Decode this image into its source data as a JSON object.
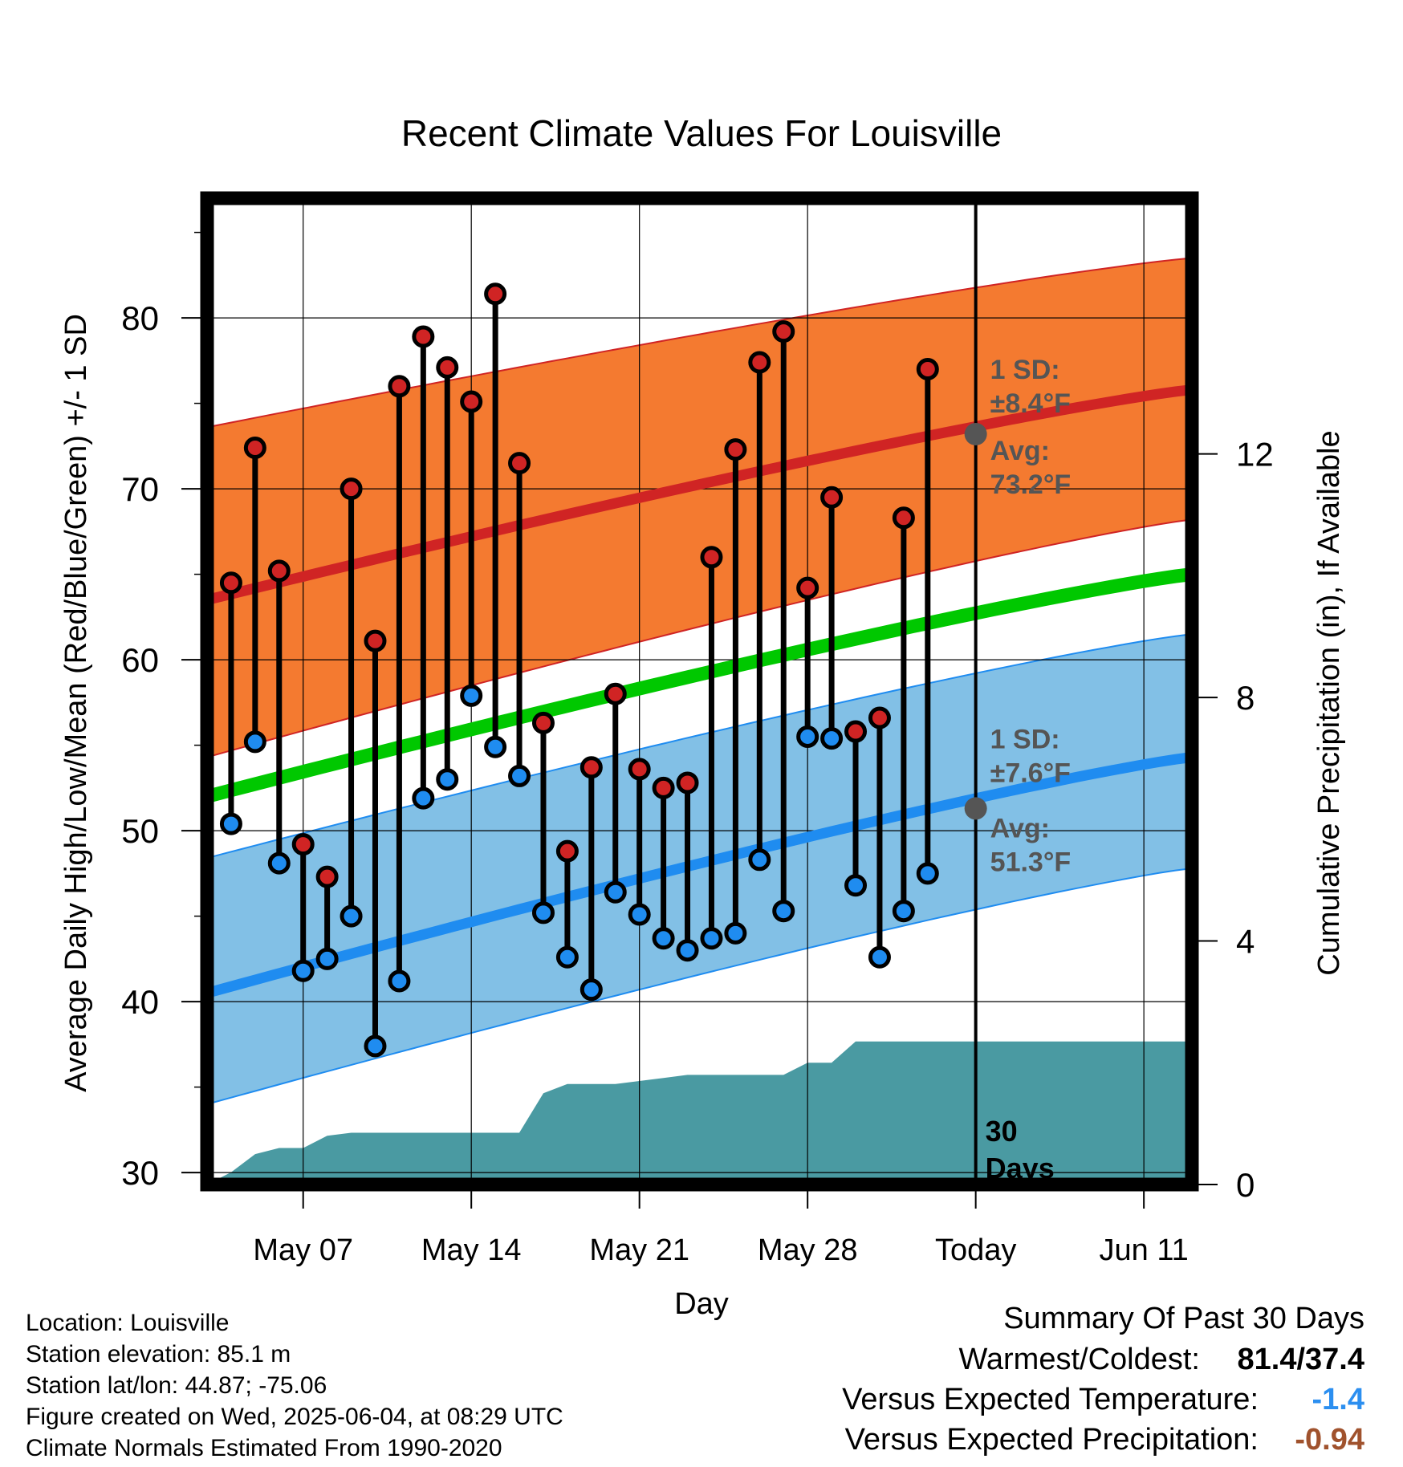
{
  "chart_data": {
    "type": "line",
    "title": "Recent Climate Values For Louisville",
    "xlabel": "Day",
    "ylabel": "Average Daily High/Low/Mean (Red/Blue/Green) +/- 1 SD",
    "y2label": "Cumulative Precipitation (in), If Available",
    "ylim": [
      29.3,
      87
    ],
    "y2lim": [
      0,
      16.2
    ],
    "x_range_days": [
      "May 03",
      "Jun 13"
    ],
    "x_ticks": [
      {
        "date": "May 07",
        "label": "May 07"
      },
      {
        "date": "May 14",
        "label": "May 14"
      },
      {
        "date": "May 21",
        "label": "May 21"
      },
      {
        "date": "May 28",
        "label": "May 28"
      },
      {
        "date": "Jun 04",
        "label": "Today"
      },
      {
        "date": "Jun 11",
        "label": "Jun 11"
      }
    ],
    "y_ticks": [
      30,
      40,
      50,
      60,
      70,
      80
    ],
    "y2_ticks": [
      0,
      4,
      8,
      12
    ],
    "grid": true,
    "today_line": "Jun 04",
    "today_label": "30 Days",
    "normal_high": {
      "avg_start": 63.5,
      "avg_end": 75.8,
      "band_upper_start": 73.6,
      "band_upper_end": 83.5,
      "band_lower_start": 54.3,
      "band_lower_end": 68.2,
      "sd_label": "1 SD:",
      "sd_value": "±8.4°F",
      "avg_label": "Avg:",
      "avg_value": "73.2°F",
      "avg_today": 73.2,
      "color_band": "#f47a30",
      "color_line": "#d02424"
    },
    "normal_low": {
      "avg_start": 40.5,
      "avg_end": 54.3,
      "band_upper_start": 48.4,
      "band_upper_end": 61.5,
      "band_lower_start": 34.0,
      "band_lower_end": 47.8,
      "sd_label": "1 SD:",
      "sd_value": "±7.6°F",
      "avg_label": "Avg:",
      "avg_value": "51.3°F",
      "avg_today": 51.3,
      "color_band": "#82c0e6",
      "color_line": "#1f8cf0"
    },
    "normal_mean": {
      "start": 52.0,
      "end": 65.0,
      "color": "#00c800"
    },
    "daily": [
      {
        "date": "May 04",
        "high": 64.5,
        "low": 50.4
      },
      {
        "date": "May 05",
        "high": 72.4,
        "low": 55.2
      },
      {
        "date": "May 06",
        "high": 65.2,
        "low": 48.1
      },
      {
        "date": "May 07",
        "high": 49.2,
        "low": 41.8
      },
      {
        "date": "May 08",
        "high": 47.3,
        "low": 42.5
      },
      {
        "date": "May 09",
        "high": 70.0,
        "low": 45.0
      },
      {
        "date": "May 10",
        "high": 61.1,
        "low": 37.4
      },
      {
        "date": "May 11",
        "high": 76.0,
        "low": 41.2
      },
      {
        "date": "May 12",
        "high": 78.9,
        "low": 51.9
      },
      {
        "date": "May 13",
        "high": 77.1,
        "low": 53.0
      },
      {
        "date": "May 14",
        "high": 75.1,
        "low": 57.9
      },
      {
        "date": "May 15",
        "high": 81.4,
        "low": 54.9
      },
      {
        "date": "May 16",
        "high": 71.5,
        "low": 53.2
      },
      {
        "date": "May 17",
        "high": 56.3,
        "low": 45.2
      },
      {
        "date": "May 18",
        "high": 48.8,
        "low": 42.6
      },
      {
        "date": "May 19",
        "high": 53.7,
        "low": 40.7
      },
      {
        "date": "May 20",
        "high": 58.0,
        "low": 46.4
      },
      {
        "date": "May 21",
        "high": 53.6,
        "low": 45.1
      },
      {
        "date": "May 22",
        "high": 52.5,
        "low": 43.7
      },
      {
        "date": "May 23",
        "high": 52.8,
        "low": 43.0
      },
      {
        "date": "May 24",
        "high": 66.0,
        "low": 43.7
      },
      {
        "date": "May 25",
        "high": 72.3,
        "low": 44.0
      },
      {
        "date": "May 26",
        "high": 77.4,
        "low": 48.3
      },
      {
        "date": "May 27",
        "high": 79.2,
        "low": 45.3
      },
      {
        "date": "May 28",
        "high": 64.2,
        "low": 55.5
      },
      {
        "date": "May 29",
        "high": 69.5,
        "low": 55.4
      },
      {
        "date": "May 30",
        "high": 55.8,
        "low": 46.8
      },
      {
        "date": "May 31",
        "high": 56.6,
        "low": 42.6
      },
      {
        "date": "Jun 01",
        "high": 68.3,
        "low": 45.3
      },
      {
        "date": "Jun 02",
        "high": 77.0,
        "low": 47.5
      }
    ],
    "precip_cumulative": [
      {
        "date": "May 03",
        "value": 0.0
      },
      {
        "date": "May 04",
        "value": 0.2
      },
      {
        "date": "May 05",
        "value": 0.5
      },
      {
        "date": "May 06",
        "value": 0.6
      },
      {
        "date": "May 07",
        "value": 0.6
      },
      {
        "date": "May 08",
        "value": 0.8
      },
      {
        "date": "May 09",
        "value": 0.85
      },
      {
        "date": "May 16",
        "value": 0.85
      },
      {
        "date": "May 17",
        "value": 1.5
      },
      {
        "date": "May 18",
        "value": 1.65
      },
      {
        "date": "May 20",
        "value": 1.65
      },
      {
        "date": "May 21",
        "value": 1.7
      },
      {
        "date": "May 22",
        "value": 1.75
      },
      {
        "date": "May 23",
        "value": 1.8
      },
      {
        "date": "May 27",
        "value": 1.8
      },
      {
        "date": "May 28",
        "value": 2.0
      },
      {
        "date": "May 29",
        "value": 2.0
      },
      {
        "date": "May 30",
        "value": 2.35
      },
      {
        "date": "Jun 13",
        "value": 2.35
      }
    ],
    "precip_color": "#4a9aa2"
  },
  "footer": {
    "location": "Location: Louisville",
    "elevation": "Station elevation: 85.1 m",
    "latlon": "Station lat/lon: 44.87; -75.06",
    "created": "Figure created on Wed, 2025-06-04, at 08:29 UTC",
    "normals": "Climate Normals Estimated From 1990-2020"
  },
  "summary": {
    "title": "Summary Of Past 30 Days",
    "warmest_coldest_label": "Warmest/Coldest:",
    "warmest_coldest_value": "81.4/37.4",
    "temp_label": "Versus Expected Temperature:",
    "temp_value": "-1.4",
    "temp_color": "#2c8ff0",
    "precip_label": "Versus Expected Precipitation:",
    "precip_value": "-0.94",
    "precip_color": "#a0522d"
  }
}
